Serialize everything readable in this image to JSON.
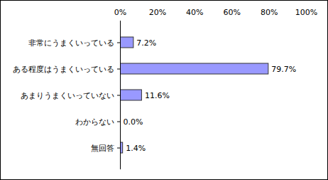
{
  "chart_data": {
    "type": "bar",
    "orientation": "horizontal",
    "categories": [
      "非常にうまくいっている",
      "ある程度はうまくいっている",
      "あまりうまくいっていない",
      "わからない",
      "無回答"
    ],
    "values": [
      7.2,
      79.7,
      11.6,
      0.0,
      1.4
    ],
    "value_labels": [
      "7.2%",
      "79.7%",
      "11.6%",
      "0.0%",
      "1.4%"
    ],
    "data_labels": true,
    "color": "#9999ff",
    "xlim": [
      0,
      100
    ],
    "xticks": [
      {
        "value": 0,
        "label": "0%"
      },
      {
        "value": 20,
        "label": "20%"
      },
      {
        "value": 40,
        "label": "40%"
      },
      {
        "value": 60,
        "label": "60%"
      },
      {
        "value": 80,
        "label": "80%"
      },
      {
        "value": 100,
        "label": "100%"
      }
    ],
    "grid": false
  }
}
